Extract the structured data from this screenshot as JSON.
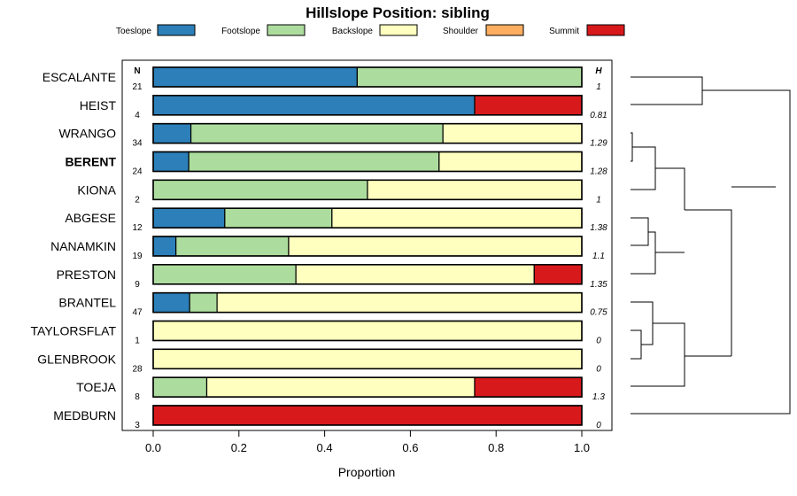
{
  "chart_data": {
    "type": "bar",
    "stacked": true,
    "orientation": "horizontal",
    "title": "Hillslope Position: sibling",
    "xlabel": "Proportion",
    "ylabel": "",
    "xlim": [
      0,
      1
    ],
    "x_ticks": [
      "0.0",
      "0.2",
      "0.4",
      "0.6",
      "0.8",
      "1.0"
    ],
    "n_header": "N",
    "h_header": "H",
    "legend_position": "top",
    "series": [
      {
        "name": "Toeslope",
        "color": "#2c7fb8"
      },
      {
        "name": "Footslope",
        "color": "#addd9e"
      },
      {
        "name": "Backslope",
        "color": "#ffffbf"
      },
      {
        "name": "Shoulder",
        "color": "#fdae61"
      },
      {
        "name": "Summit",
        "color": "#d7191c"
      }
    ],
    "highlight": "BERENT",
    "rows": [
      {
        "label": "ESCALANTE",
        "n": "21",
        "h": "1",
        "values": [
          0.476,
          0.524,
          0,
          0,
          0
        ]
      },
      {
        "label": "HEIST",
        "n": "4",
        "h": "0.81",
        "values": [
          0.75,
          0,
          0,
          0,
          0.25
        ]
      },
      {
        "label": "WRANGO",
        "n": "34",
        "h": "1.29",
        "values": [
          0.088,
          0.588,
          0.324,
          0,
          0
        ]
      },
      {
        "label": "BERENT",
        "n": "24",
        "h": "1.28",
        "values": [
          0.083,
          0.584,
          0.333,
          0,
          0
        ]
      },
      {
        "label": "KIONA",
        "n": "2",
        "h": "1",
        "values": [
          0,
          0.5,
          0.5,
          0,
          0
        ]
      },
      {
        "label": "ABGESE",
        "n": "12",
        "h": "1.38",
        "values": [
          0.167,
          0.25,
          0.583,
          0,
          0
        ]
      },
      {
        "label": "NANAMKIN",
        "n": "19",
        "h": "1.1",
        "values": [
          0.053,
          0.263,
          0.684,
          0,
          0
        ]
      },
      {
        "label": "PRESTON",
        "n": "9",
        "h": "1.35",
        "values": [
          0,
          0.333,
          0.556,
          0,
          0.111
        ]
      },
      {
        "label": "BRANTEL",
        "n": "47",
        "h": "0.75",
        "values": [
          0.085,
          0.064,
          0.851,
          0,
          0
        ]
      },
      {
        "label": "TAYLORSFLAT",
        "n": "1",
        "h": "0",
        "values": [
          0,
          0,
          1,
          0,
          0
        ]
      },
      {
        "label": "GLENBROOK",
        "n": "28",
        "h": "0",
        "values": [
          0,
          0,
          1,
          0,
          0
        ]
      },
      {
        "label": "TOEJA",
        "n": "8",
        "h": "1.3",
        "values": [
          0,
          0.125,
          0.625,
          0,
          0.25
        ]
      },
      {
        "label": "MEDBURN",
        "n": "3",
        "h": "0",
        "values": [
          0,
          0,
          0,
          0,
          1
        ]
      }
    ]
  }
}
